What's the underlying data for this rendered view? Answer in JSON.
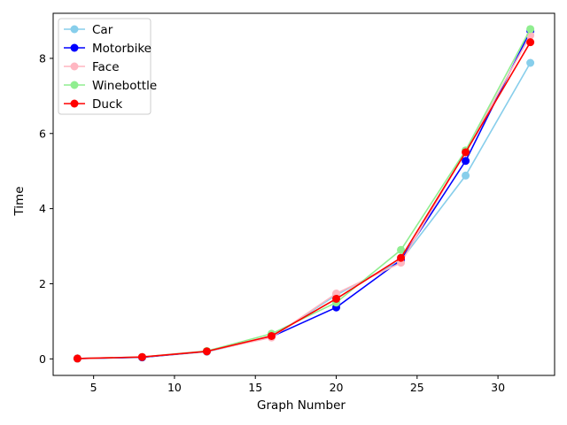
{
  "chart_data": {
    "type": "line",
    "xlabel": "Graph Number",
    "ylabel": "Time",
    "x": [
      4,
      8,
      12,
      16,
      20,
      24,
      28,
      32
    ],
    "xlim": [
      2.5,
      33.5
    ],
    "ylim": [
      -0.44,
      9.2
    ],
    "xticks": [
      5,
      10,
      15,
      20,
      25,
      30
    ],
    "yticks": [
      0,
      2,
      4,
      6,
      8
    ],
    "grid": false,
    "legend_position": "top-left",
    "series": [
      {
        "name": "Car",
        "color": "#87CEEB",
        "values": [
          0.01,
          0.04,
          0.19,
          0.58,
          1.7,
          2.62,
          4.88,
          7.88
        ]
      },
      {
        "name": "Motorbike",
        "color": "#0000FF",
        "values": [
          0.01,
          0.04,
          0.2,
          0.59,
          1.37,
          2.63,
          5.27,
          8.73
        ]
      },
      {
        "name": "Face",
        "color": "#FFB6C1",
        "values": [
          0.01,
          0.05,
          0.2,
          0.57,
          1.74,
          2.56,
          5.52,
          8.61
        ]
      },
      {
        "name": "Winebottle",
        "color": "#90EE90",
        "values": [
          0.01,
          0.05,
          0.21,
          0.67,
          1.5,
          2.9,
          5.55,
          8.78
        ]
      },
      {
        "name": "Duck",
        "color": "#FF0000",
        "values": [
          0.01,
          0.05,
          0.2,
          0.61,
          1.6,
          2.69,
          5.5,
          8.43
        ]
      }
    ]
  }
}
